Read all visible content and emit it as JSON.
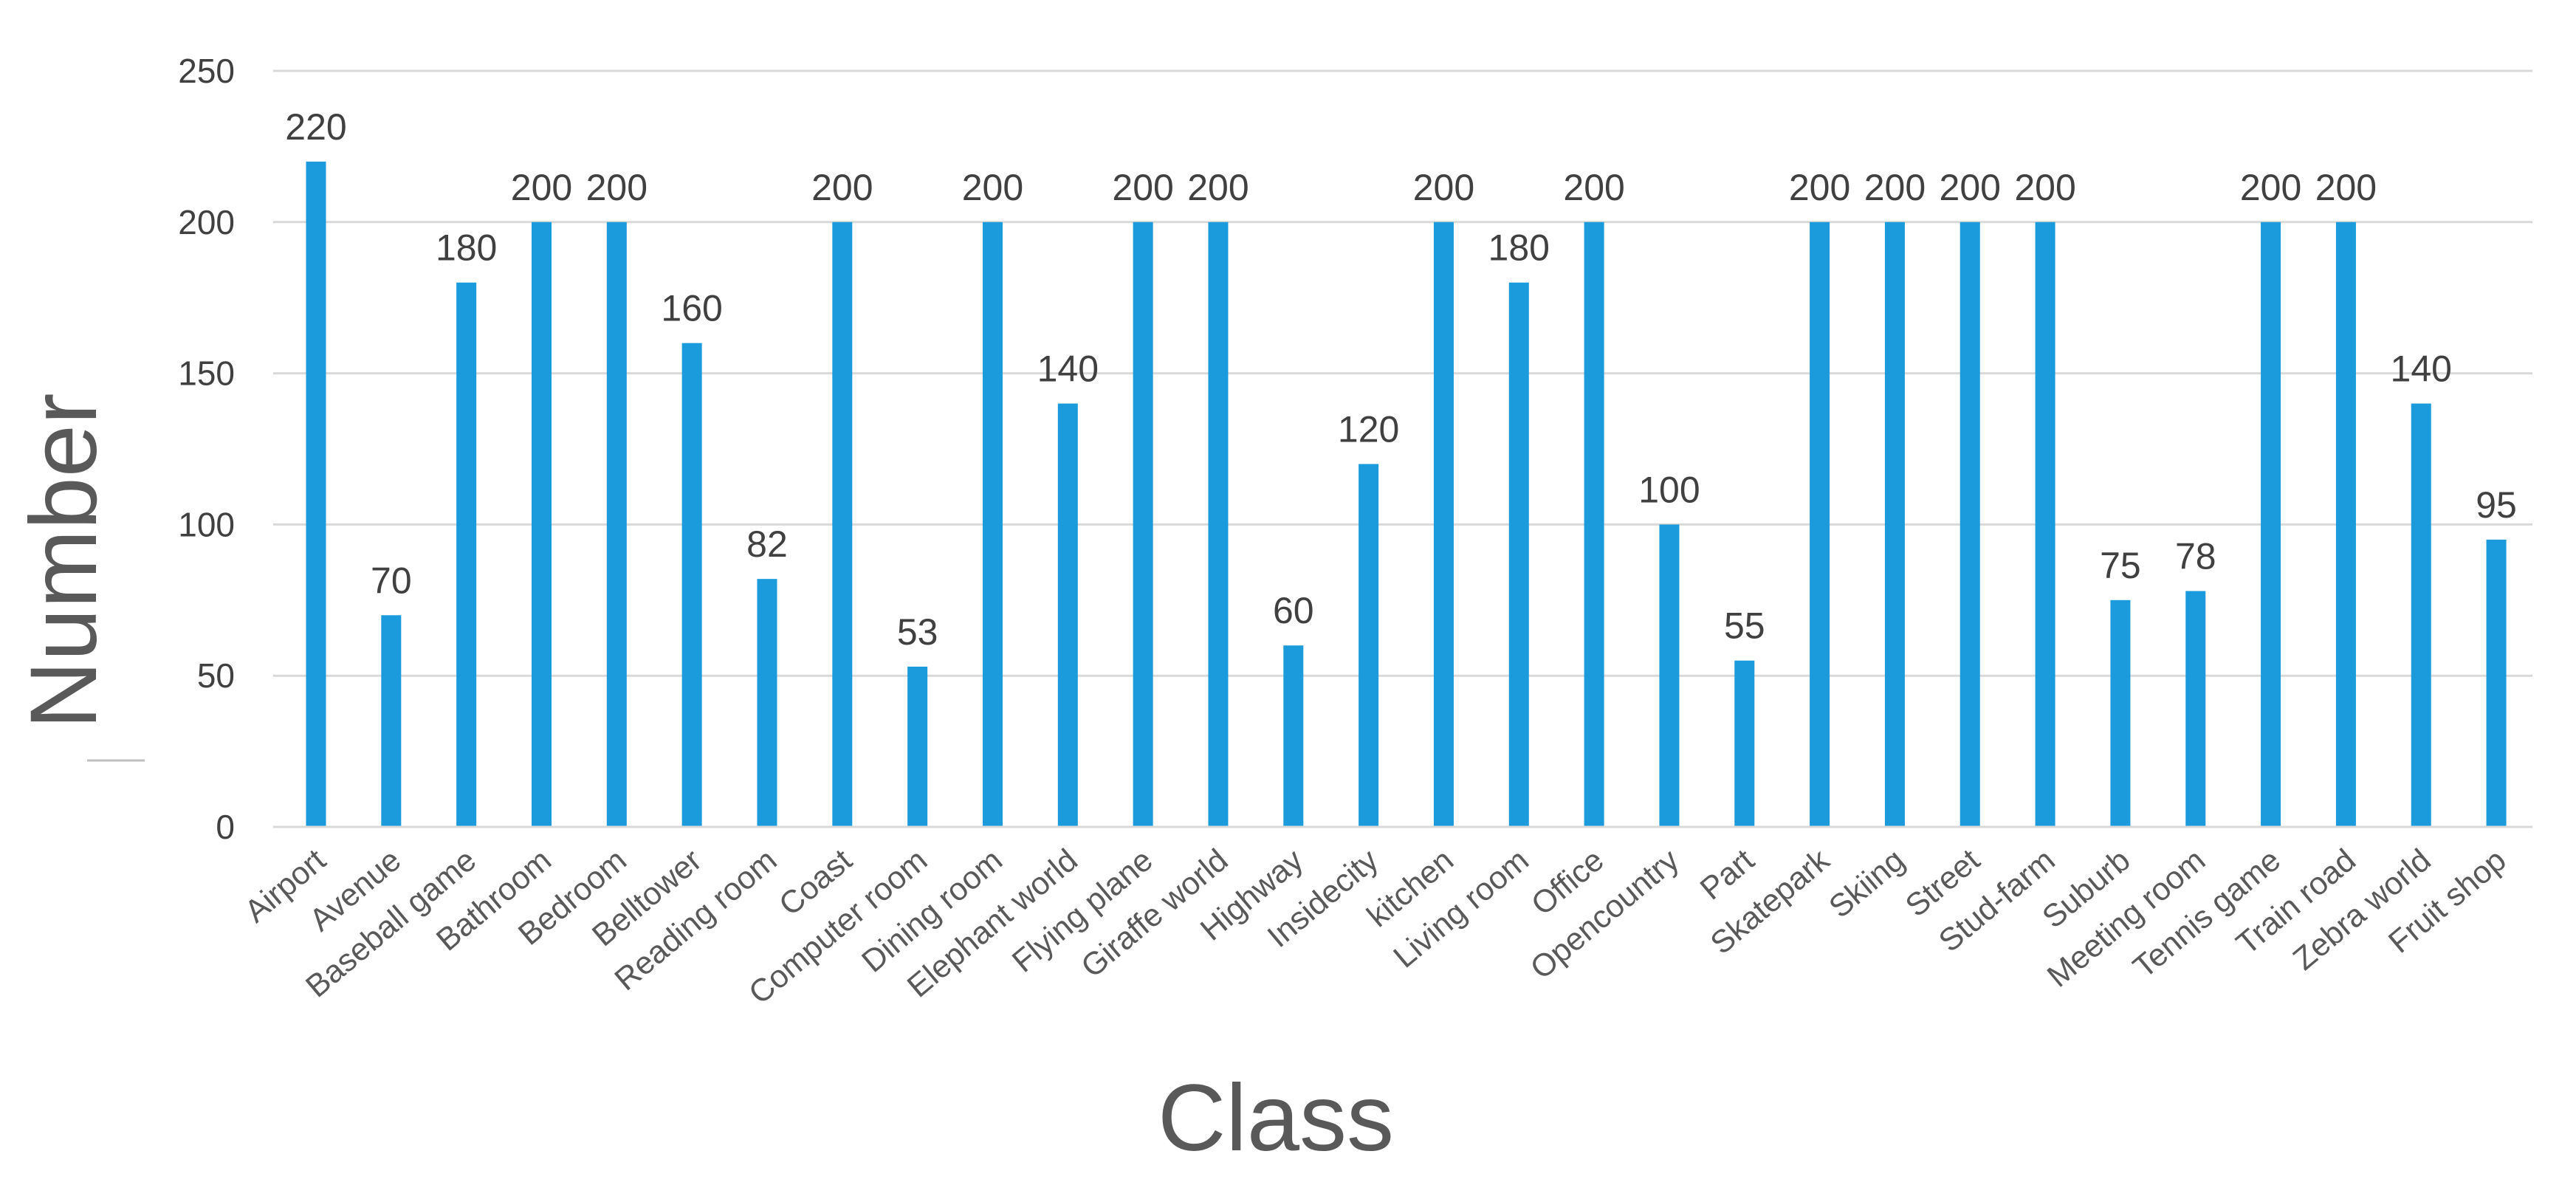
{
  "chart_data": {
    "type": "bar",
    "title": "",
    "xlabel": "Class",
    "ylabel": "Number",
    "ylim": [
      0,
      250
    ],
    "yticks": [
      0,
      50,
      100,
      150,
      200,
      250
    ],
    "grid": "horizontal",
    "legend": "none",
    "bar_color": "#1b9bdb",
    "grid_color": "#d9d9d9",
    "categories": [
      "Airport",
      "Avenue",
      "Baseball game",
      "Bathroom",
      "Bedroom",
      "Belltower",
      "Reading room",
      "Coast",
      "Computer room",
      "Dining room",
      "Elephant world",
      "Flying plane",
      "Giraffe world",
      "Highway",
      "Insidecity",
      "kitchen",
      "Living room",
      "Office",
      "Opencountry",
      "Part",
      "Skatepark",
      "Skiing",
      "Street",
      "Stud-farm",
      "Suburb",
      "Meeting room",
      "Tennis game",
      "Train road",
      "Zebra world",
      "Fruit shop"
    ],
    "values": [
      220,
      70,
      180,
      200,
      200,
      160,
      82,
      200,
      53,
      200,
      140,
      200,
      200,
      60,
      120,
      200,
      180,
      200,
      100,
      55,
      200,
      200,
      200,
      200,
      75,
      78,
      200,
      200,
      140,
      95
    ]
  }
}
